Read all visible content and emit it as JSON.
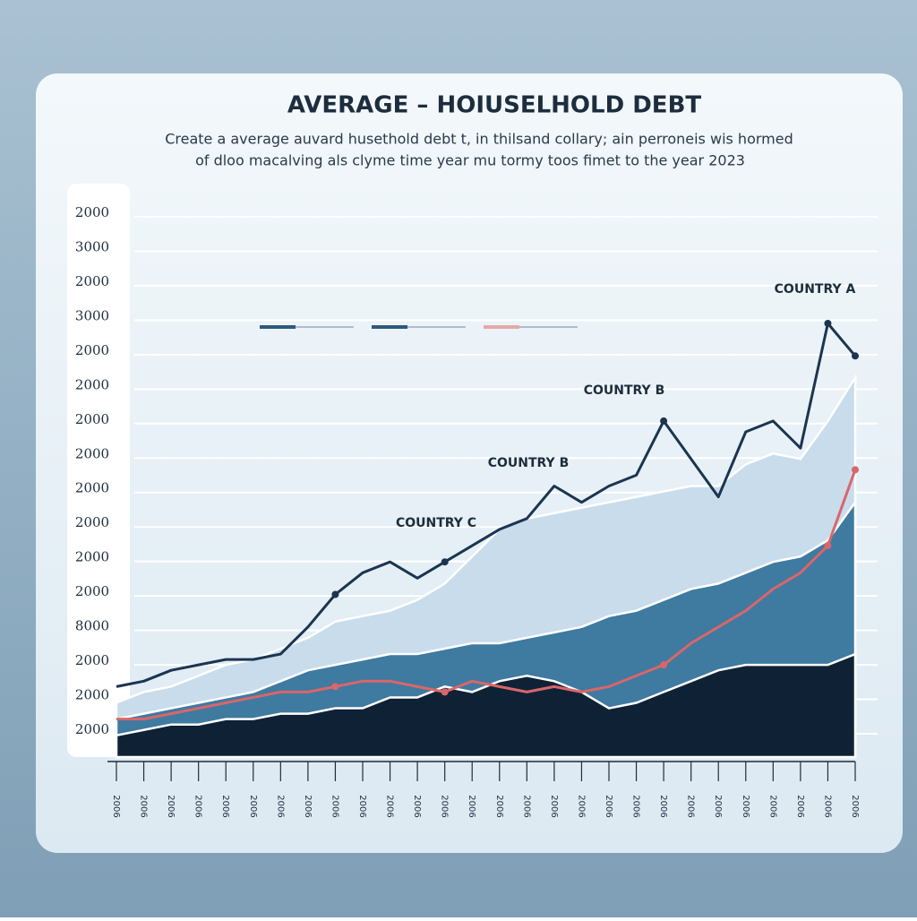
{
  "chart_data": {
    "type": "line",
    "title": "AVERAGE – HOIUSELHOLD DEBT",
    "subtitle": [
      "Create a average auvard husethold debt t,  in thilsand collary;  ain perroneis wis hormed",
      "of dloo macalving als clyme time year mu tormy toos fimet to the year 2023"
    ],
    "y_labels": [
      "2000",
      "3000",
      "2000",
      "3000",
      "2000",
      "2000",
      "2000",
      "2000",
      "2000",
      "2000",
      "2000",
      "2000",
      "8000",
      "2000",
      "2000",
      "2000"
    ],
    "categories": [
      "2006",
      "2006",
      "2006",
      "2006",
      "2006",
      "2006",
      "2006",
      "2006",
      "2006",
      "2006",
      "2006",
      "2006",
      "2006",
      "2006",
      "2006",
      "2006",
      "2006",
      "2006",
      "2006",
      "2006",
      "2006",
      "2006",
      "2006",
      "2006",
      "2006",
      "2006",
      "2006",
      "2006"
    ],
    "ylim": [
      0,
      100
    ],
    "annotations": [
      "COUNTRY A",
      "COUNTRY B",
      "COUNTRY B",
      "COUNTRY C"
    ],
    "series": [
      {
        "kind": "area",
        "color": "#c9dcec",
        "values": [
          10,
          12,
          13,
          15,
          17,
          18,
          20,
          22,
          25,
          26,
          27,
          29,
          32,
          37,
          42,
          44,
          45,
          46,
          47,
          48,
          49,
          50,
          50,
          54,
          56,
          55,
          62,
          70
        ]
      },
      {
        "kind": "area",
        "color": "#3f7aa0",
        "values": [
          7,
          8,
          9,
          10,
          11,
          12,
          14,
          16,
          17,
          18,
          19,
          19,
          20,
          21,
          21,
          22,
          23,
          24,
          26,
          27,
          29,
          31,
          32,
          34,
          36,
          37,
          40,
          47
        ]
      },
      {
        "kind": "area",
        "color": "#0f2235",
        "values": [
          4,
          5,
          6,
          6,
          7,
          7,
          8,
          8,
          9,
          9,
          11,
          11,
          13,
          12,
          14,
          15,
          14,
          12,
          9,
          10,
          12,
          14,
          16,
          17,
          17,
          17,
          17,
          19
        ]
      },
      {
        "kind": "line",
        "color": "#d9666a",
        "values": [
          7,
          7,
          8,
          9,
          10,
          11,
          12,
          12,
          13,
          14,
          14,
          13,
          12,
          14,
          13,
          12,
          13,
          12,
          13,
          15,
          17,
          21,
          24,
          27,
          31,
          34,
          39,
          53
        ]
      },
      {
        "kind": "line",
        "color": "#1b3550",
        "values": [
          13,
          14,
          16,
          17,
          18,
          18,
          19,
          24,
          30,
          34,
          36,
          33,
          36,
          39,
          42,
          44,
          50,
          47,
          50,
          52,
          62,
          55,
          48,
          60,
          62,
          57,
          80,
          74
        ]
      }
    ]
  }
}
